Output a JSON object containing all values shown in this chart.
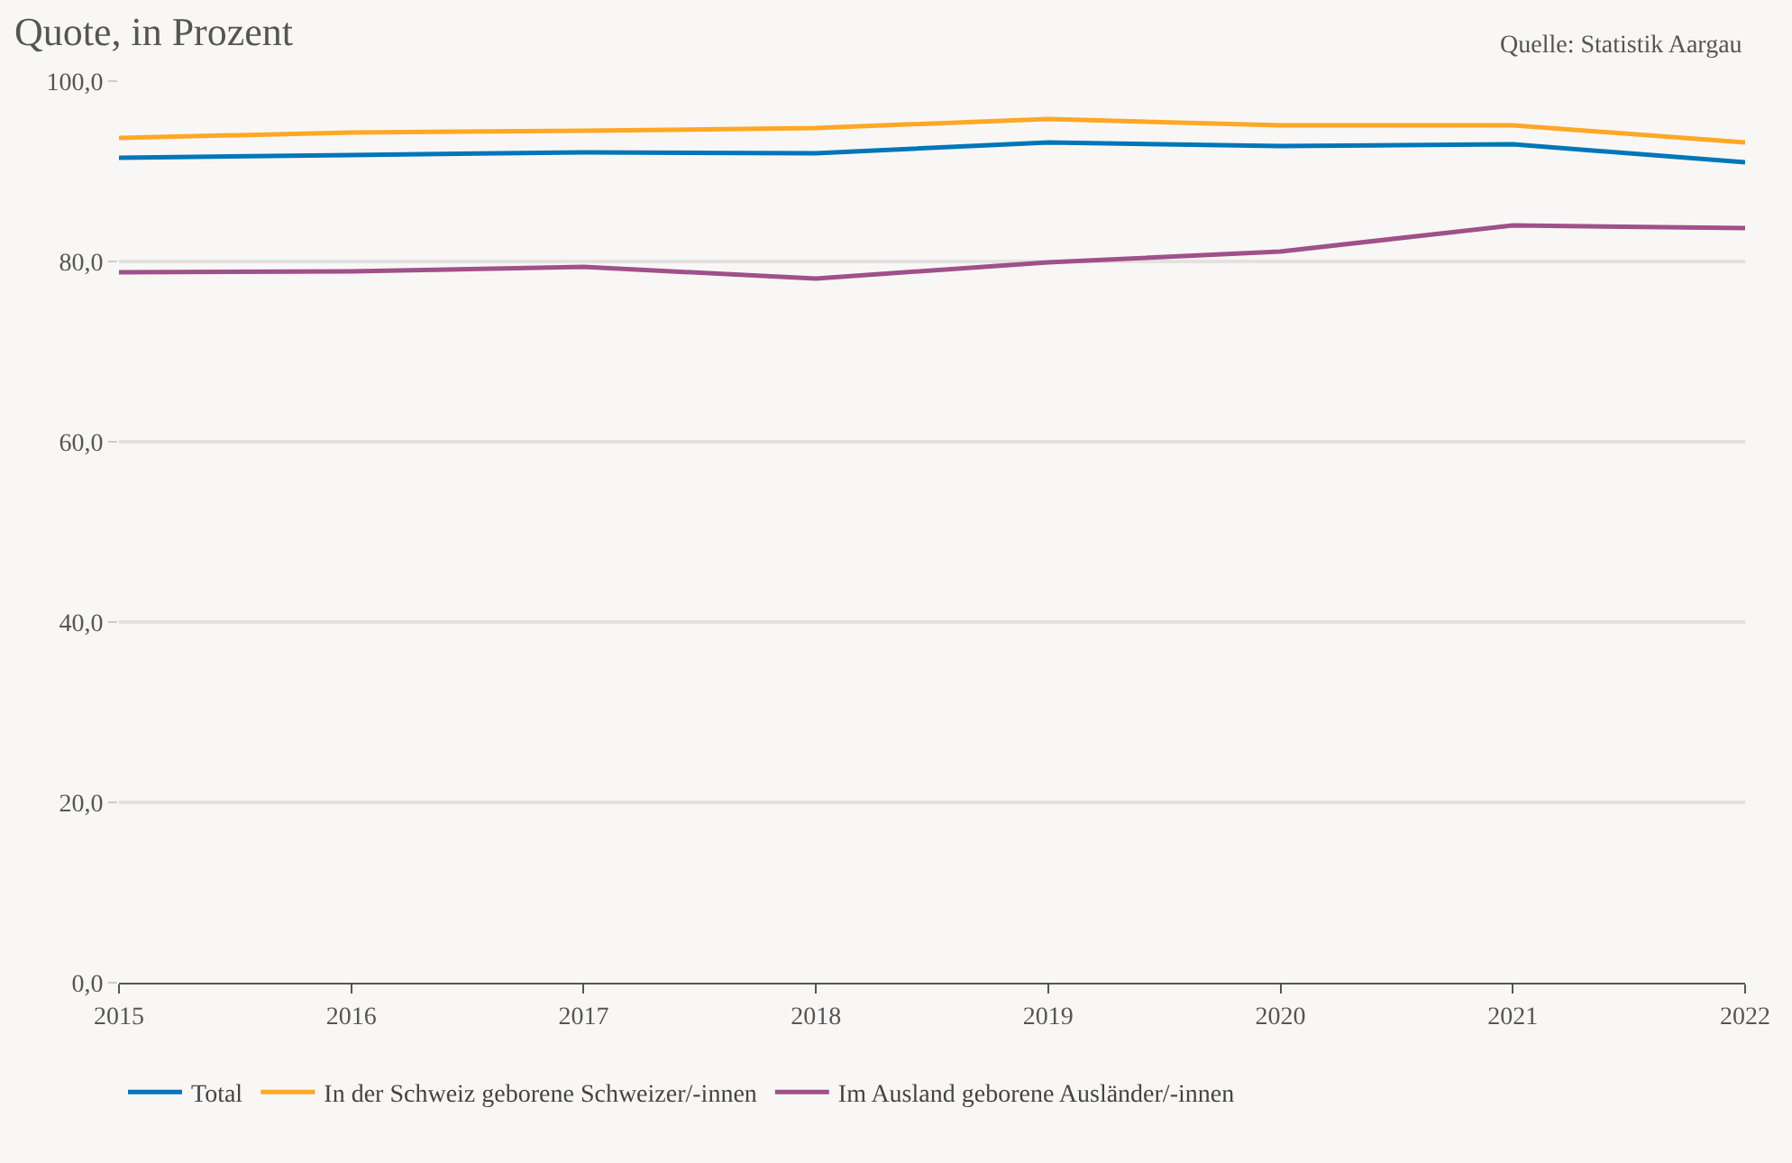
{
  "chart_data": {
    "type": "line",
    "title": "Quote, in Prozent",
    "annotations": [
      "Quelle: Statistik Aargau"
    ],
    "x": [
      2015,
      2016,
      2017,
      2018,
      2019,
      2020,
      2021,
      2022
    ],
    "xlim": [
      2015,
      2022
    ],
    "xticks": [
      2015,
      2016,
      2017,
      2018,
      2019,
      2020,
      2021,
      2022
    ],
    "ylim": [
      0,
      100
    ],
    "yticks": [
      {
        "value": 0,
        "label": "0,0"
      },
      {
        "value": 20,
        "label": "20,0"
      },
      {
        "value": 40,
        "label": "40,0"
      },
      {
        "value": 60,
        "label": "60,0"
      },
      {
        "value": 80,
        "label": "80,0"
      },
      {
        "value": 100,
        "label": "100,0"
      }
    ],
    "grid": "y",
    "legend": "bottom",
    "marker": "none",
    "line_style": "solid",
    "series": [
      {
        "name": "Total",
        "color": "#0076b9",
        "values": [
          91.5,
          91.8,
          92.1,
          92.0,
          93.2,
          92.8,
          93.0,
          91.0
        ]
      },
      {
        "name": "In der Schweiz geborene Schweizer/-innen",
        "color": "#ffa726",
        "values": [
          93.7,
          94.3,
          94.5,
          94.8,
          95.8,
          95.1,
          95.1,
          93.2
        ]
      },
      {
        "name": "Im Ausland geborene Ausländer/-innen",
        "color": "#a0508a",
        "values": [
          78.8,
          78.9,
          79.4,
          78.1,
          79.9,
          81.1,
          84.0,
          83.7
        ]
      }
    ]
  }
}
